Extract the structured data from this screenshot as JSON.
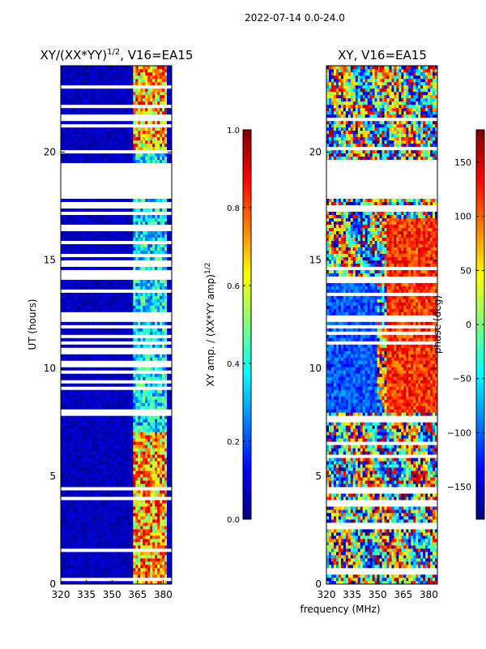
{
  "suptitle": "2022-07-14 0.0-24.0",
  "xlabel_common": "frequency (MHz)",
  "colors": {
    "jet": [
      "#00007f",
      "#0000ff",
      "#007fff",
      "#00ffff",
      "#7fff7f",
      "#ffff00",
      "#ff7f00",
      "#ff0000",
      "#7f0000"
    ],
    "gap": "#ffffff"
  },
  "chart_data": [
    {
      "type": "heatmap",
      "title": "XY/(XX*YY)",
      "title_sup": "1/2",
      "title_tail": ", V16=EA15",
      "xlabel": "",
      "ylabel": "UT (hours)",
      "xlim": [
        320,
        385
      ],
      "ylim": [
        0,
        24
      ],
      "xticks": [
        320,
        335,
        350,
        365,
        380
      ],
      "yticks": [
        0,
        5,
        10,
        15,
        20
      ],
      "colorbar": {
        "label": "XY amp. / (XX*YY amp)",
        "label_sup": "1/2",
        "range": [
          0,
          1
        ],
        "ticks": [
          "0.0",
          "0.2",
          "0.4",
          "0.6",
          "0.8",
          "1.0"
        ],
        "tick_values": [
          0,
          0.2,
          0.4,
          0.6,
          0.8,
          1.0
        ]
      },
      "data_gap_hours": [
        19.5,
        17.8
      ],
      "active_band_mhz": [
        363,
        382
      ]
    },
    {
      "type": "heatmap",
      "title": "XY, V16=EA15",
      "xlabel": "frequency (MHz)",
      "ylabel": "",
      "xlim": [
        320,
        385
      ],
      "ylim": [
        0,
        24
      ],
      "xticks": [
        320,
        335,
        350,
        365,
        380
      ],
      "yticks": [
        0,
        5,
        10,
        15,
        20
      ],
      "colorbar": {
        "label": "phase (deg)",
        "range": [
          -180,
          180
        ],
        "ticks": [
          "−150",
          "−100",
          "−50",
          "0",
          "50",
          "100",
          "150"
        ],
        "tick_values": [
          -150,
          -100,
          -50,
          0,
          50,
          100,
          150
        ]
      },
      "data_gap_hours": [
        19.5,
        17.8
      ]
    }
  ]
}
